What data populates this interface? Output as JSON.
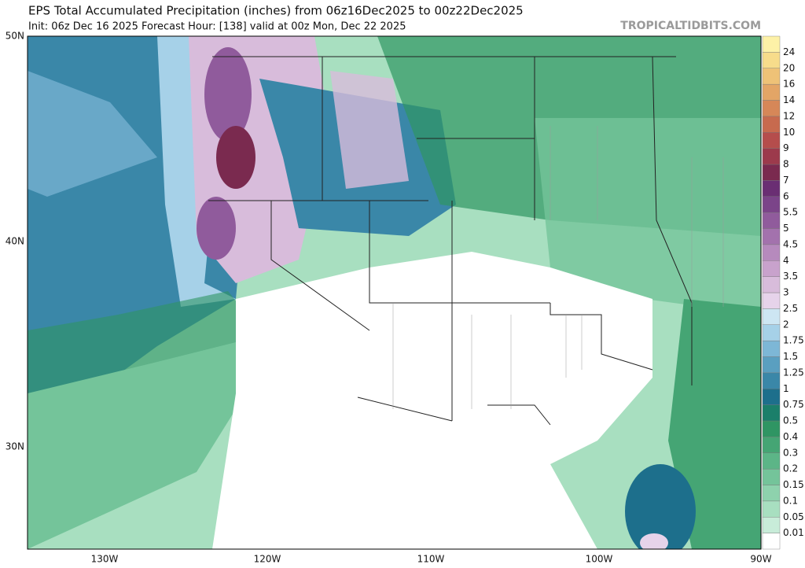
{
  "header": {
    "title": "EPS Total Accumulated Precipitation (inches) from 06z16Dec2025 to 00z22Dec2025",
    "subtitle": "Init: 06z Dec 16 2025   Forecast Hour: [138]   valid at 00z Mon, Dec 22 2025",
    "watermark": "TROPICALTIDBITS.COM"
  },
  "map": {
    "lat_labels": [
      "50N",
      "40N",
      "30N"
    ],
    "lon_labels": [
      "130W",
      "120W",
      "110W",
      "100W",
      "90W"
    ]
  },
  "legend": {
    "levels": [
      "0.01",
      "0.05",
      "0.1",
      "0.15",
      "0.2",
      "0.3",
      "0.4",
      "0.5",
      "0.75",
      "1",
      "1.25",
      "1.5",
      "1.75",
      "2",
      "2.5",
      "3",
      "3.5",
      "4",
      "4.5",
      "5",
      "5.5",
      "6",
      "7",
      "8",
      "9",
      "10",
      "12",
      "14",
      "16",
      "20",
      "24"
    ],
    "colors": [
      "#ffffff",
      "#c8ecd9",
      "#a8dfc0",
      "#8ed2ad",
      "#74c49a",
      "#5cb587",
      "#45a574",
      "#2f9563",
      "#1b7f6a",
      "#1d6f8c",
      "#3a87a8",
      "#5a9fc0",
      "#7db7d6",
      "#a6d1e8",
      "#cde6f3",
      "#e6d3ea",
      "#d8bcdb",
      "#c8a2cc",
      "#b68abd",
      "#a372ad",
      "#905b9c",
      "#7b4489",
      "#6a2e73",
      "#7a2a4f",
      "#9c3a4c",
      "#b54d4c",
      "#c76a4e",
      "#d68758",
      "#e3a566",
      "#eec277",
      "#f7dc8b",
      "#fdf1a7"
    ]
  }
}
